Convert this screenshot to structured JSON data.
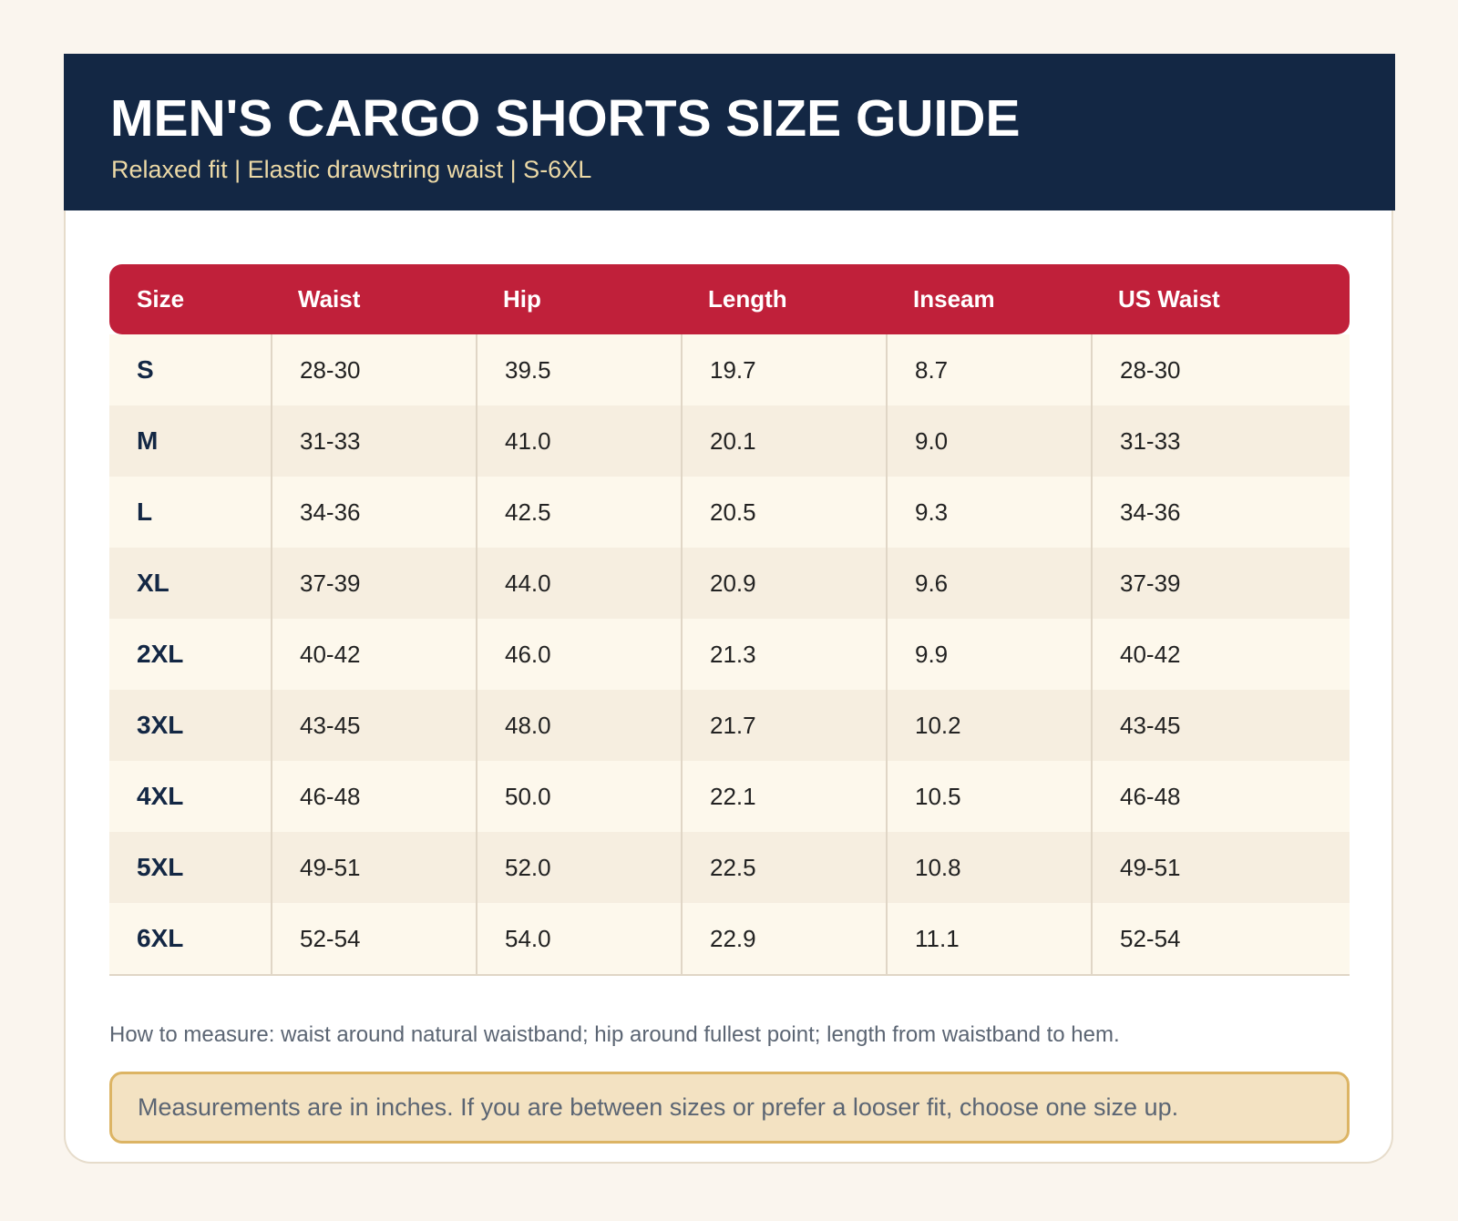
{
  "header": {
    "title": "MEN'S CARGO SHORTS SIZE GUIDE",
    "subtitle": "Relaxed fit | Elastic drawstring waist | S-6XL"
  },
  "table": {
    "columns": [
      "Size",
      "Waist",
      "Hip",
      "Length",
      "Inseam",
      "US Waist"
    ],
    "rows": [
      [
        "S",
        "28-30",
        "39.5",
        "19.7",
        "8.7",
        "28-30"
      ],
      [
        "M",
        "31-33",
        "41.0",
        "20.1",
        "9.0",
        "31-33"
      ],
      [
        "L",
        "34-36",
        "42.5",
        "20.5",
        "9.3",
        "34-36"
      ],
      [
        "XL",
        "37-39",
        "44.0",
        "20.9",
        "9.6",
        "37-39"
      ],
      [
        "2XL",
        "40-42",
        "46.0",
        "21.3",
        "9.9",
        "40-42"
      ],
      [
        "3XL",
        "43-45",
        "48.0",
        "21.7",
        "10.2",
        "43-45"
      ],
      [
        "4XL",
        "46-48",
        "50.0",
        "22.1",
        "10.5",
        "46-48"
      ],
      [
        "5XL",
        "49-51",
        "52.0",
        "22.5",
        "10.8",
        "49-51"
      ],
      [
        "6XL",
        "52-54",
        "54.0",
        "22.9",
        "11.1",
        "52-54"
      ]
    ]
  },
  "footer": {
    "note": "How to measure: waist around natural waistband; hip around fullest point; length from waistband to hem.",
    "callout": "Measurements are in inches. If you are between sizes or prefer a looser fit, choose one size up."
  }
}
